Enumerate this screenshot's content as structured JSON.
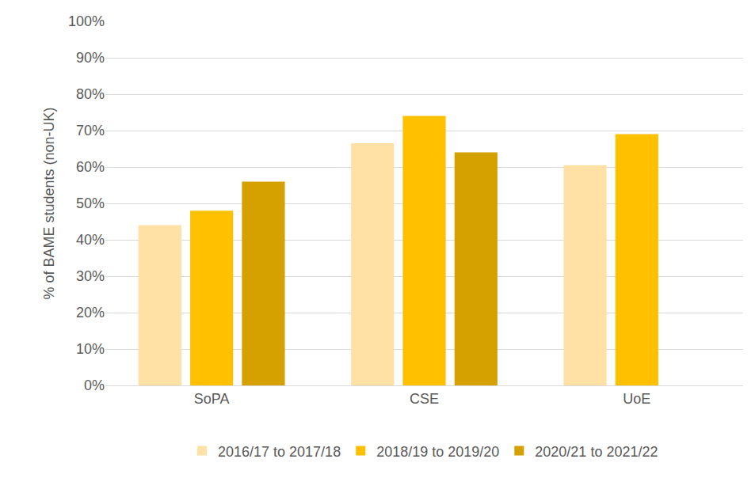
{
  "chart_data": {
    "type": "bar",
    "y_label": "% of BAME students (non-UK)",
    "categories": [
      "SoPA",
      "CSE",
      "UoE"
    ],
    "series": [
      {
        "name": "2016/17 to 2017/18",
        "color": "#FFE1A6",
        "values": [
          44,
          66.5,
          60.5
        ]
      },
      {
        "name": "2018/19 to 2019/20",
        "color": "#FFC000",
        "values": [
          48,
          74,
          69
        ]
      },
      {
        "name": "2020/21 to 2021/22",
        "color": "#D4A100",
        "values": [
          56,
          64,
          null
        ]
      }
    ],
    "ylim": [
      0,
      100
    ],
    "yticks": [
      {
        "value": 0,
        "label": "0%"
      },
      {
        "value": 10,
        "label": "10%"
      },
      {
        "value": 20,
        "label": "20%"
      },
      {
        "value": 30,
        "label": "30%"
      },
      {
        "value": 40,
        "label": "40%"
      },
      {
        "value": 50,
        "label": "50%"
      },
      {
        "value": 60,
        "label": "60%"
      },
      {
        "value": 70,
        "label": "70%"
      },
      {
        "value": 80,
        "label": "80%"
      },
      {
        "value": 90,
        "label": "90%"
      },
      {
        "value": 100,
        "label": "100%"
      }
    ],
    "grid": true,
    "legend": "bottom"
  }
}
